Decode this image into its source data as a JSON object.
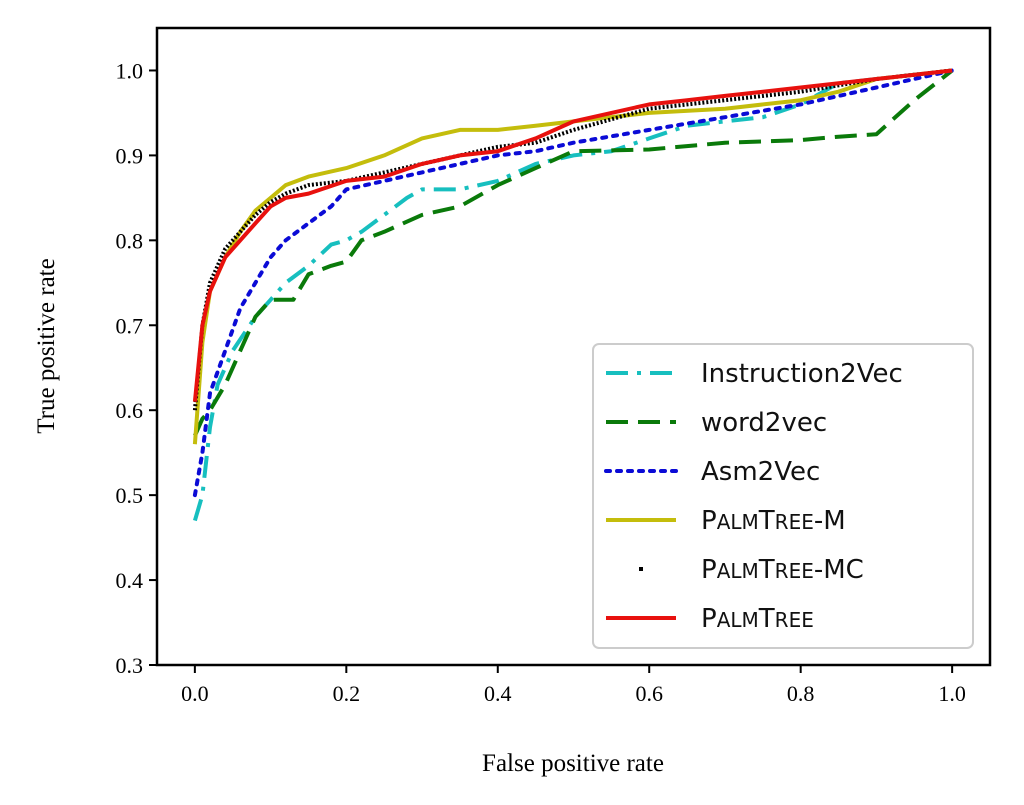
{
  "chart_data": {
    "type": "line",
    "title": "",
    "xlabel": "False positive rate",
    "ylabel": "True positive rate",
    "xlim": [
      -0.05,
      1.05
    ],
    "ylim": [
      0.3,
      1.05
    ],
    "x_ticks": [
      {
        "v": 0.0,
        "label": "0.0"
      },
      {
        "v": 0.2,
        "label": "0.2"
      },
      {
        "v": 0.4,
        "label": "0.4"
      },
      {
        "v": 0.6,
        "label": "0.6"
      },
      {
        "v": 0.8,
        "label": "0.8"
      },
      {
        "v": 1.0,
        "label": "1.0"
      }
    ],
    "y_ticks": [
      {
        "v": 0.3,
        "label": "0.3"
      },
      {
        "v": 0.4,
        "label": "0.4"
      },
      {
        "v": 0.5,
        "label": "0.5"
      },
      {
        "v": 0.6,
        "label": "0.6"
      },
      {
        "v": 0.7,
        "label": "0.7"
      },
      {
        "v": 0.8,
        "label": "0.8"
      },
      {
        "v": 0.9,
        "label": "0.9"
      },
      {
        "v": 1.0,
        "label": "1.0"
      }
    ],
    "grid": false,
    "legend_position": "lower-right",
    "series": [
      {
        "name": "Instruction2Vec",
        "legend_base": "Instruction2Vec",
        "legend_small": "",
        "legend_suffix": "",
        "color": "#17bfbf",
        "style": "dashdot",
        "x": [
          0.0,
          0.01,
          0.02,
          0.03,
          0.05,
          0.08,
          0.1,
          0.12,
          0.15,
          0.18,
          0.2,
          0.22,
          0.25,
          0.28,
          0.3,
          0.35,
          0.4,
          0.45,
          0.5,
          0.55,
          0.6,
          0.65,
          0.7,
          0.75,
          0.8,
          0.85,
          0.9,
          0.95,
          1.0
        ],
        "y": [
          0.47,
          0.5,
          0.58,
          0.63,
          0.67,
          0.71,
          0.73,
          0.75,
          0.77,
          0.795,
          0.8,
          0.81,
          0.83,
          0.85,
          0.86,
          0.86,
          0.87,
          0.89,
          0.9,
          0.905,
          0.92,
          0.935,
          0.94,
          0.945,
          0.96,
          0.985,
          0.99,
          0.995,
          1.0
        ]
      },
      {
        "name": "word2vec",
        "legend_base": "word2vec",
        "legend_small": "",
        "legend_suffix": "",
        "color": "#0a7a0a",
        "style": "dashed",
        "x": [
          0.0,
          0.01,
          0.02,
          0.04,
          0.06,
          0.08,
          0.1,
          0.13,
          0.15,
          0.18,
          0.2,
          0.22,
          0.25,
          0.3,
          0.35,
          0.4,
          0.45,
          0.5,
          0.6,
          0.7,
          0.8,
          0.85,
          0.9,
          0.95,
          1.0
        ],
        "y": [
          0.57,
          0.59,
          0.6,
          0.63,
          0.67,
          0.71,
          0.73,
          0.73,
          0.76,
          0.77,
          0.775,
          0.8,
          0.81,
          0.83,
          0.84,
          0.865,
          0.885,
          0.905,
          0.907,
          0.915,
          0.918,
          0.922,
          0.925,
          0.965,
          1.0
        ]
      },
      {
        "name": "Asm2Vec",
        "legend_base": "Asm2Vec",
        "legend_small": "",
        "legend_suffix": "",
        "color": "#0b0bd6",
        "style": "dotted",
        "x": [
          0.0,
          0.01,
          0.02,
          0.04,
          0.06,
          0.08,
          0.1,
          0.12,
          0.15,
          0.18,
          0.2,
          0.25,
          0.3,
          0.35,
          0.4,
          0.45,
          0.5,
          0.6,
          0.7,
          0.8,
          0.9,
          1.0
        ],
        "y": [
          0.5,
          0.55,
          0.62,
          0.67,
          0.72,
          0.75,
          0.78,
          0.8,
          0.82,
          0.84,
          0.86,
          0.87,
          0.88,
          0.89,
          0.9,
          0.905,
          0.915,
          0.93,
          0.945,
          0.96,
          0.98,
          1.0
        ]
      },
      {
        "name": "PalmTree-M",
        "legend_base": "P",
        "legend_small": "ALM",
        "legend_base2": "T",
        "legend_small2": "REE",
        "legend_suffix": "-M",
        "color": "#c4bd0c",
        "style": "solid",
        "x": [
          0.0,
          0.01,
          0.02,
          0.04,
          0.06,
          0.08,
          0.1,
          0.12,
          0.15,
          0.2,
          0.25,
          0.3,
          0.35,
          0.4,
          0.45,
          0.5,
          0.6,
          0.7,
          0.8,
          0.85,
          0.9,
          1.0
        ],
        "y": [
          0.56,
          0.68,
          0.74,
          0.78,
          0.81,
          0.835,
          0.85,
          0.865,
          0.875,
          0.885,
          0.9,
          0.92,
          0.93,
          0.93,
          0.935,
          0.94,
          0.95,
          0.955,
          0.965,
          0.975,
          0.99,
          1.0
        ]
      },
      {
        "name": "PalmTree-MC",
        "legend_base": "P",
        "legend_small": "ALM",
        "legend_base2": "T",
        "legend_small2": "REE",
        "legend_suffix": "-MC",
        "color": "#000000",
        "style": "point",
        "x": [
          0.0,
          0.01,
          0.02,
          0.04,
          0.06,
          0.08,
          0.1,
          0.12,
          0.15,
          0.2,
          0.25,
          0.3,
          0.35,
          0.4,
          0.45,
          0.5,
          0.6,
          0.7,
          0.8,
          0.9,
          1.0
        ],
        "y": [
          0.6,
          0.7,
          0.75,
          0.79,
          0.81,
          0.83,
          0.845,
          0.855,
          0.865,
          0.87,
          0.88,
          0.89,
          0.9,
          0.91,
          0.915,
          0.93,
          0.955,
          0.965,
          0.975,
          0.99,
          1.0
        ]
      },
      {
        "name": "PalmTree",
        "legend_base": "P",
        "legend_small": "ALM",
        "legend_base2": "T",
        "legend_small2": "REE",
        "legend_suffix": "",
        "color": "#e8110e",
        "style": "solid",
        "x": [
          0.0,
          0.01,
          0.02,
          0.04,
          0.06,
          0.08,
          0.1,
          0.12,
          0.15,
          0.2,
          0.25,
          0.3,
          0.35,
          0.4,
          0.45,
          0.5,
          0.55,
          0.6,
          0.65,
          0.7,
          0.75,
          0.8,
          0.9,
          1.0
        ],
        "y": [
          0.61,
          0.7,
          0.74,
          0.78,
          0.8,
          0.82,
          0.84,
          0.85,
          0.855,
          0.87,
          0.875,
          0.89,
          0.9,
          0.905,
          0.92,
          0.94,
          0.95,
          0.96,
          0.965,
          0.97,
          0.975,
          0.98,
          0.99,
          1.0
        ]
      }
    ]
  }
}
